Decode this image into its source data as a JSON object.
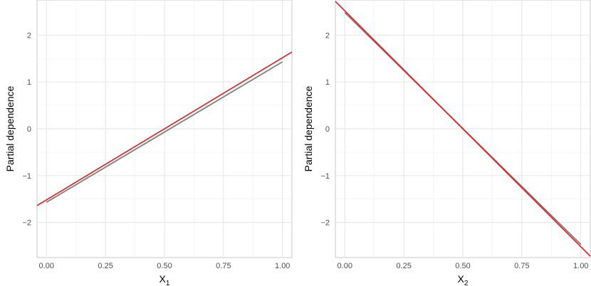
{
  "chart_data": [
    {
      "type": "line",
      "xlabel": "X",
      "xlabel_subscript": "1",
      "ylabel": "Partial dependence",
      "xlim": [
        -0.04,
        1.04
      ],
      "ylim": [
        -2.75,
        2.75
      ],
      "x_ticks": [
        "0.00",
        "0.25",
        "0.50",
        "0.75",
        "1.00"
      ],
      "x_tick_values": [
        0,
        0.25,
        0.5,
        0.75,
        1.0
      ],
      "y_ticks": [
        "−2",
        "−1",
        "0",
        "1",
        "2"
      ],
      "y_tick_values": [
        -2,
        -1,
        0,
        1,
        2
      ],
      "grid": true,
      "series": [
        {
          "color": "#808080",
          "x": [
            0.0,
            1.0
          ],
          "y": [
            -1.57,
            1.43
          ]
        },
        {
          "color": "#e41a1c",
          "x": [
            -0.04,
            1.04
          ],
          "y": [
            -1.64,
            1.64
          ]
        }
      ]
    },
    {
      "type": "line",
      "xlabel": "X",
      "xlabel_subscript": "2",
      "ylabel": "Partial dependence",
      "xlim": [
        -0.04,
        1.04
      ],
      "ylim": [
        -2.75,
        2.75
      ],
      "x_ticks": [
        "0.00",
        "0.25",
        "0.50",
        "0.75",
        "1.00"
      ],
      "x_tick_values": [
        0,
        0.25,
        0.5,
        0.75,
        1.0
      ],
      "y_ticks": [
        "−2",
        "−1",
        "0",
        "1",
        "2"
      ],
      "y_tick_values": [
        -2,
        -1,
        0,
        1,
        2
      ],
      "grid": true,
      "series": [
        {
          "color": "#808080",
          "x": [
            0.0,
            1.0
          ],
          "y": [
            2.48,
            -2.47
          ]
        },
        {
          "color": "#e41a1c",
          "x": [
            -0.04,
            1.04
          ],
          "y": [
            2.72,
            -2.72
          ]
        }
      ]
    }
  ]
}
